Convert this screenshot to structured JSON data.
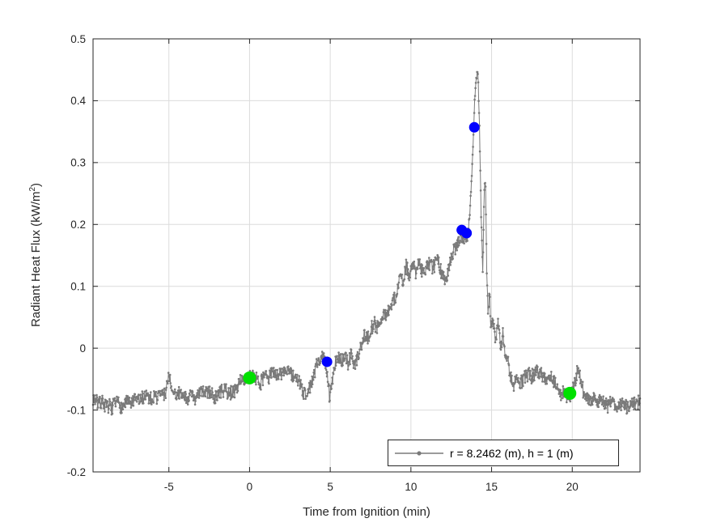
{
  "figure": {
    "background": "#ffffff"
  },
  "chart_data": {
    "type": "line",
    "title": "",
    "xlabel": "Time from Ignition (min)",
    "ylabel": "Radiant Heat Flux (kW/m^2)",
    "ylabel_parts": {
      "pre": "Radiant Heat Flux (kW/m",
      "sup": "2",
      "post": ")"
    },
    "xlim": [
      -9.7,
      24.2
    ],
    "ylim": [
      -0.2,
      0.5
    ],
    "xticks": [
      -5,
      0,
      5,
      10,
      15,
      20
    ],
    "yticks": [
      -0.2,
      -0.1,
      0,
      0.1,
      0.2,
      0.3,
      0.4,
      0.5
    ],
    "grid": true,
    "legend": {
      "label": "r = 8.2462 (m), h = 1 (m)",
      "position": "southeast"
    },
    "colors": {
      "line_gray": "#7a7a7a",
      "marker_green": "#00e000",
      "marker_blue": "#0000ff",
      "axis": "#262626",
      "grid": "#dcdcdc",
      "tick_label": "#262626",
      "background": "#ffffff"
    },
    "series": [
      {
        "name": "r = 8.2462 (m), h = 1 (m)",
        "type": "noisy-line-with-dot-markers",
        "color": "#7a7a7a",
        "sample_interval_min": 0.025,
        "noise_amplitude": 0.011,
        "noise_seed": 7,
        "trend_keypoints": [
          [
            -9.7,
            -0.08
          ],
          [
            -9.4,
            -0.085
          ],
          [
            -9.1,
            -0.078
          ],
          [
            -8.8,
            -0.09
          ],
          [
            -8.5,
            -0.095
          ],
          [
            -8.2,
            -0.088
          ],
          [
            -7.9,
            -0.092
          ],
          [
            -7.6,
            -0.085
          ],
          [
            -7.3,
            -0.09
          ],
          [
            -7.0,
            -0.082
          ],
          [
            -6.7,
            -0.088
          ],
          [
            -6.4,
            -0.08
          ],
          [
            -6.1,
            -0.085
          ],
          [
            -5.8,
            -0.082
          ],
          [
            -5.5,
            -0.078
          ],
          [
            -5.2,
            -0.076
          ],
          [
            -5.0,
            -0.046
          ],
          [
            -4.9,
            -0.062
          ],
          [
            -4.75,
            -0.08
          ],
          [
            -4.5,
            -0.082
          ],
          [
            -4.2,
            -0.078
          ],
          [
            -3.9,
            -0.08
          ],
          [
            -3.6,
            -0.075
          ],
          [
            -3.3,
            -0.08
          ],
          [
            -3.0,
            -0.073
          ],
          [
            -2.7,
            -0.078
          ],
          [
            -2.4,
            -0.07
          ],
          [
            -2.1,
            -0.08
          ],
          [
            -1.8,
            -0.072
          ],
          [
            -1.5,
            -0.068
          ],
          [
            -1.2,
            -0.075
          ],
          [
            -0.9,
            -0.07
          ],
          [
            -0.6,
            -0.056
          ],
          [
            -0.45,
            -0.04
          ],
          [
            -0.3,
            -0.06
          ],
          [
            -0.1,
            -0.052
          ],
          [
            0.0,
            -0.048
          ],
          [
            0.3,
            -0.042
          ],
          [
            0.6,
            -0.05
          ],
          [
            0.9,
            -0.038
          ],
          [
            1.2,
            -0.045
          ],
          [
            1.5,
            -0.035
          ],
          [
            1.8,
            -0.045
          ],
          [
            2.1,
            -0.04
          ],
          [
            2.4,
            -0.035
          ],
          [
            2.7,
            -0.05
          ],
          [
            3.0,
            -0.06
          ],
          [
            3.3,
            -0.072
          ],
          [
            3.6,
            -0.068
          ],
          [
            3.9,
            -0.055
          ],
          [
            4.2,
            -0.03
          ],
          [
            4.5,
            -0.012
          ],
          [
            4.7,
            -0.02
          ],
          [
            4.85,
            -0.042
          ],
          [
            4.95,
            -0.072
          ],
          [
            5.1,
            -0.05
          ],
          [
            5.3,
            -0.02
          ],
          [
            5.5,
            -0.01
          ],
          [
            5.7,
            -0.018
          ],
          [
            5.9,
            -0.005
          ],
          [
            6.1,
            -0.02
          ],
          [
            6.3,
            -0.008
          ],
          [
            6.5,
            -0.025
          ],
          [
            6.7,
            -0.01
          ],
          [
            6.9,
            0.01
          ],
          [
            7.1,
            0.025
          ],
          [
            7.3,
            0.02
          ],
          [
            7.5,
            0.035
          ],
          [
            7.7,
            0.045
          ],
          [
            7.9,
            0.04
          ],
          [
            8.1,
            0.05
          ],
          [
            8.3,
            0.065
          ],
          [
            8.5,
            0.06
          ],
          [
            8.7,
            0.07
          ],
          [
            8.9,
            0.08
          ],
          [
            9.1,
            0.092
          ],
          [
            9.3,
            0.125
          ],
          [
            9.5,
            0.105
          ],
          [
            9.7,
            0.13
          ],
          [
            9.9,
            0.12
          ],
          [
            10.1,
            0.135
          ],
          [
            10.3,
            0.125
          ],
          [
            10.5,
            0.148
          ],
          [
            10.7,
            0.13
          ],
          [
            10.9,
            0.14
          ],
          [
            11.1,
            0.148
          ],
          [
            11.3,
            0.135
          ],
          [
            11.5,
            0.142
          ],
          [
            11.7,
            0.15
          ],
          [
            11.9,
            0.125
          ],
          [
            12.1,
            0.11
          ],
          [
            12.3,
            0.125
          ],
          [
            12.5,
            0.155
          ],
          [
            12.7,
            0.165
          ],
          [
            12.9,
            0.175
          ],
          [
            13.1,
            0.19
          ],
          [
            13.3,
            0.185
          ],
          [
            13.5,
            0.192
          ],
          [
            13.65,
            0.22
          ],
          [
            13.8,
            0.3
          ],
          [
            13.95,
            0.4
          ],
          [
            14.05,
            0.44
          ],
          [
            14.15,
            0.45
          ],
          [
            14.25,
            0.36
          ],
          [
            14.35,
            0.22
          ],
          [
            14.45,
            0.13
          ],
          [
            14.55,
            0.26
          ],
          [
            14.62,
            0.28
          ],
          [
            14.7,
            0.12
          ],
          [
            14.78,
            0.06
          ],
          [
            14.88,
            0.1
          ],
          [
            14.95,
            0.05
          ],
          [
            15.1,
            0.05
          ],
          [
            15.25,
            0.02
          ],
          [
            15.4,
            0.045
          ],
          [
            15.55,
            0.005
          ],
          [
            15.7,
            0.025
          ],
          [
            15.85,
            -0.02
          ],
          [
            16.0,
            -0.01
          ],
          [
            16.15,
            -0.04
          ],
          [
            16.4,
            -0.05
          ],
          [
            16.6,
            -0.045
          ],
          [
            16.9,
            -0.048
          ],
          [
            17.2,
            -0.042
          ],
          [
            17.5,
            -0.045
          ],
          [
            17.8,
            -0.033
          ],
          [
            18.1,
            -0.042
          ],
          [
            18.4,
            -0.045
          ],
          [
            18.7,
            -0.04
          ],
          [
            19.0,
            -0.055
          ],
          [
            19.3,
            -0.068
          ],
          [
            19.6,
            -0.065
          ],
          [
            19.85,
            -0.073
          ],
          [
            20.1,
            -0.055
          ],
          [
            20.35,
            -0.025
          ],
          [
            20.5,
            -0.04
          ],
          [
            20.7,
            -0.065
          ],
          [
            21.0,
            -0.075
          ],
          [
            21.3,
            -0.07
          ],
          [
            21.6,
            -0.08
          ],
          [
            21.9,
            -0.075
          ],
          [
            22.2,
            -0.085
          ],
          [
            22.5,
            -0.08
          ],
          [
            22.8,
            -0.088
          ],
          [
            23.1,
            -0.082
          ],
          [
            23.4,
            -0.09
          ],
          [
            23.7,
            -0.085
          ],
          [
            24.0,
            -0.092
          ],
          [
            24.2,
            -0.088
          ]
        ]
      },
      {
        "name": "green-event-markers",
        "type": "scatter",
        "color": "#00e000",
        "marker_radius_px": 8,
        "points": [
          [
            0.0,
            -0.048
          ],
          [
            19.85,
            -0.073
          ]
        ]
      },
      {
        "name": "blue-event-markers",
        "type": "scatter",
        "color": "#0000ff",
        "marker_radius_px": 6.5,
        "points": [
          [
            4.8,
            -0.022
          ],
          [
            13.15,
            0.191
          ],
          [
            13.45,
            0.186
          ],
          [
            13.93,
            0.357
          ]
        ]
      }
    ]
  }
}
